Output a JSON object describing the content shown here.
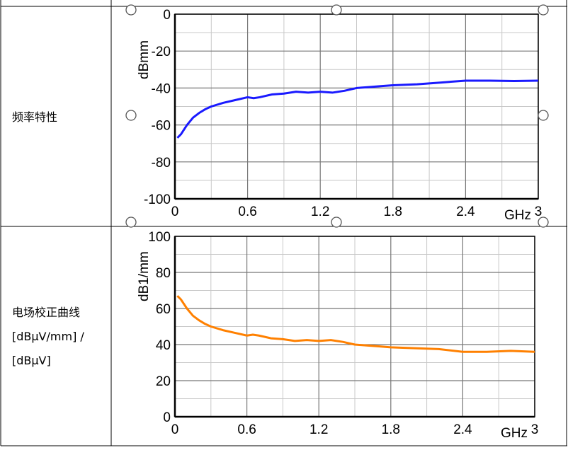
{
  "table": {
    "rows": [
      {
        "label": [
          "频率特性"
        ]
      },
      {
        "label": [
          "电场校正曲线",
          "[dBμV/mm] /",
          "[dBμV]"
        ]
      }
    ]
  },
  "chart_data": [
    {
      "type": "line",
      "x_label": "GHz",
      "y_label": "dBmm",
      "color": "#1a1aff",
      "x": [
        0.02,
        0.05,
        0.1,
        0.15,
        0.2,
        0.25,
        0.3,
        0.4,
        0.5,
        0.6,
        0.65,
        0.7,
        0.8,
        0.9,
        1.0,
        1.1,
        1.2,
        1.3,
        1.4,
        1.5,
        1.6,
        1.7,
        1.8,
        2.0,
        2.2,
        2.4,
        2.6,
        2.8,
        3.0
      ],
      "values": [
        -67,
        -65,
        -60,
        -56,
        -53.5,
        -51.5,
        -50,
        -48,
        -46.5,
        -45,
        -45.5,
        -45,
        -43.5,
        -43,
        -42,
        -42.5,
        -42,
        -42.5,
        -41.5,
        -40,
        -39.5,
        -39,
        -38.5,
        -38,
        -37,
        -36,
        -36,
        -36.2,
        -36
      ],
      "xlim": [
        0,
        3
      ],
      "xticks": [
        0,
        0.6,
        1.2,
        1.8,
        2.4,
        3
      ],
      "ylim": [
        -100,
        0
      ],
      "yticks": [
        -100,
        -80,
        -60,
        -40,
        -20,
        0
      ],
      "grid": true
    },
    {
      "type": "line",
      "x_label": "GHz",
      "y_label": "dB1/mm",
      "color": "#ff8000",
      "x": [
        0.02,
        0.05,
        0.1,
        0.15,
        0.2,
        0.25,
        0.3,
        0.4,
        0.5,
        0.6,
        0.65,
        0.7,
        0.8,
        0.9,
        1.0,
        1.1,
        1.2,
        1.3,
        1.4,
        1.5,
        1.6,
        1.7,
        1.8,
        2.0,
        2.2,
        2.4,
        2.6,
        2.8,
        3.0
      ],
      "values": [
        67,
        65,
        60,
        56,
        53.5,
        51.5,
        50,
        48,
        46.5,
        45,
        45.5,
        45,
        43.5,
        43,
        42,
        42.5,
        42,
        42.5,
        41.5,
        40,
        39.5,
        39,
        38.5,
        38,
        37.5,
        36,
        36,
        36.5,
        36
      ],
      "xlim": [
        0,
        3
      ],
      "xticks": [
        0,
        0.6,
        1.2,
        1.8,
        2.4,
        3
      ],
      "ylim": [
        0,
        100
      ],
      "yticks": [
        0,
        20,
        40,
        60,
        80,
        100
      ],
      "grid": true
    }
  ]
}
